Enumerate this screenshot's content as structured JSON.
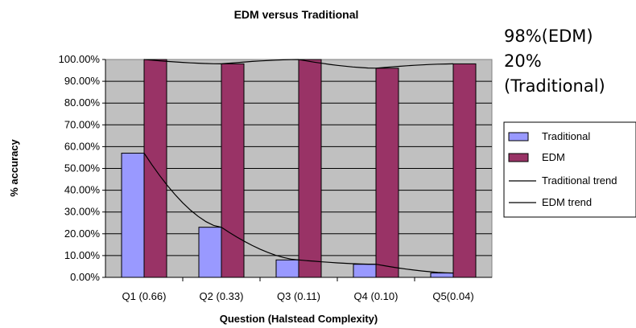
{
  "chart_data": {
    "type": "bar",
    "title": "EDM versus Traditional",
    "xlabel": "Question (Halstead Complexity)",
    "ylabel": "% accuracy",
    "ylim": [
      0,
      100
    ],
    "yticks": [
      "0.00%",
      "10.00%",
      "20.00%",
      "30.00%",
      "40.00%",
      "50.00%",
      "60.00%",
      "70.00%",
      "80.00%",
      "90.00%",
      "100.00%"
    ],
    "categories": [
      "Q1 (0.66)",
      "Q2 (0.33)",
      "Q3 (0.11)",
      "Q4 (0.10)",
      "Q5(0.04)"
    ],
    "series": [
      {
        "name": "Traditional",
        "values": [
          57,
          23,
          8,
          6,
          2
        ],
        "color": "#9999ff"
      },
      {
        "name": "EDM",
        "values": [
          100,
          98,
          100,
          96,
          98
        ],
        "color": "#993366"
      }
    ],
    "trendlines": [
      {
        "name": "Traditional trend",
        "values": [
          57,
          23,
          8,
          6,
          2
        ],
        "color": "#000000"
      },
      {
        "name": "EDM trend",
        "values": [
          100,
          98,
          100,
          96,
          98
        ],
        "color": "#000000"
      }
    ],
    "grid": true,
    "plot_background": "#c0c0c0",
    "legend_position": "right",
    "annotations": [
      "98%(EDM)",
      "20%",
      "(Traditional)"
    ]
  }
}
